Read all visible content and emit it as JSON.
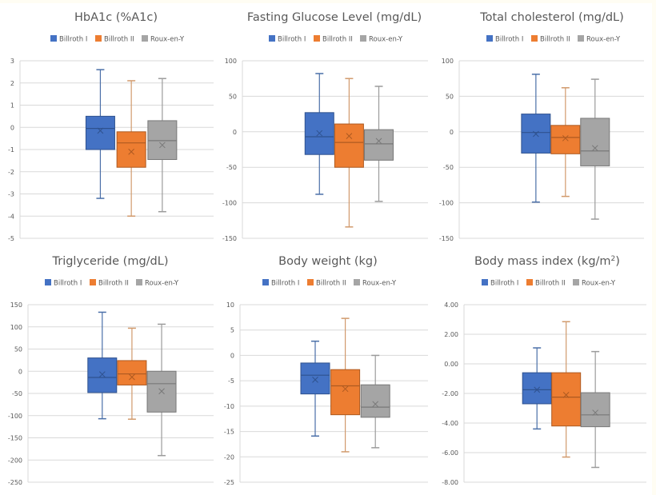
{
  "colors": {
    "billroth_i": "#4472c4",
    "billroth_ii": "#ed7d31",
    "roux_en_y": "#a5a5a5",
    "billroth_i_line": "#2f528f",
    "billroth_ii_line": "#ae5a21",
    "roux_en_y_line": "#787878"
  },
  "legend": [
    "Billroth I",
    "Billroth II",
    "Roux-en-Y"
  ],
  "chart_data": [
    {
      "type": "box",
      "title": "HbA1c (%A1c)",
      "ylim": [
        -5,
        3
      ],
      "yticks": [
        3,
        2,
        1,
        0,
        -1,
        -2,
        -3,
        -4,
        -5
      ],
      "ytick_labels": [
        "3",
        "2",
        "1",
        "0",
        "-1",
        "-2",
        "-3",
        "-4",
        "-5"
      ],
      "grid": true,
      "legend_position": "top",
      "series": [
        {
          "name": "Billroth I",
          "min": -3.2,
          "q1": -1.0,
          "median": -0.05,
          "q3": 0.5,
          "max": 2.6,
          "mean": -0.15
        },
        {
          "name": "Billroth II",
          "min": -4.0,
          "q1": -1.8,
          "median": -0.7,
          "q3": -0.2,
          "max": 2.1,
          "mean": -1.1
        },
        {
          "name": "Roux-en-Y",
          "min": -3.8,
          "q1": -1.45,
          "median": -0.6,
          "q3": 0.3,
          "max": 2.2,
          "mean": -0.8
        }
      ]
    },
    {
      "type": "box",
      "title": "Fasting Glucose Level (mg/dL)",
      "ylim": [
        -150,
        100
      ],
      "yticks": [
        100,
        50,
        0,
        -50,
        -100,
        -150
      ],
      "ytick_labels": [
        "100",
        "50",
        "0",
        "-50",
        "-100",
        "-150"
      ],
      "grid": true,
      "legend_position": "top",
      "series": [
        {
          "name": "Billroth I",
          "min": -88,
          "q1": -32,
          "median": -7,
          "q3": 27,
          "max": 82,
          "mean": -2
        },
        {
          "name": "Billroth II",
          "min": -134,
          "q1": -50,
          "median": -15,
          "q3": 11,
          "max": 75,
          "mean": -6
        },
        {
          "name": "Roux-en-Y",
          "min": -98,
          "q1": -40,
          "median": -17,
          "q3": 3,
          "max": 64,
          "mean": -13
        }
      ]
    },
    {
      "type": "box",
      "title": "Total cholesterol  (mg/dL)",
      "ylim": [
        -150,
        100
      ],
      "yticks": [
        100,
        50,
        0,
        -50,
        -100,
        -150
      ],
      "ytick_labels": [
        "100",
        "50",
        "0",
        "-50",
        "-100",
        "-150"
      ],
      "grid": true,
      "legend_position": "top",
      "series": [
        {
          "name": "Billroth I",
          "min": -99,
          "q1": -30,
          "median": -1,
          "q3": 25,
          "max": 81,
          "mean": -3
        },
        {
          "name": "Billroth II",
          "min": -91,
          "q1": -31,
          "median": -8,
          "q3": 9,
          "max": 62,
          "mean": -9
        },
        {
          "name": "Roux-en-Y",
          "min": -123,
          "q1": -48,
          "median": -27,
          "q3": 19,
          "max": 74,
          "mean": -23
        }
      ]
    },
    {
      "type": "box",
      "title": "Triglyceride (mg/dL)",
      "ylim": [
        -250,
        150
      ],
      "yticks": [
        150,
        100,
        50,
        0,
        -50,
        -100,
        -150,
        -200,
        -250
      ],
      "ytick_labels": [
        "150",
        "100",
        "50",
        "0",
        "-50",
        "-100",
        "-150",
        "-200",
        "-250"
      ],
      "grid": true,
      "legend_position": "top",
      "series": [
        {
          "name": "Billroth I",
          "min": -107,
          "q1": -48,
          "median": -14,
          "q3": 30,
          "max": 133,
          "mean": -7
        },
        {
          "name": "Billroth II",
          "min": -108,
          "q1": -31,
          "median": -6,
          "q3": 24,
          "max": 97,
          "mean": -13
        },
        {
          "name": "Roux-en-Y",
          "min": -190,
          "q1": -92,
          "median": -28,
          "q3": 0,
          "max": 106,
          "mean": -45
        }
      ]
    },
    {
      "type": "box",
      "title": "Body weight (kg)",
      "ylim": [
        -25,
        10
      ],
      "yticks": [
        10,
        5,
        0,
        -5,
        -10,
        -15,
        -20,
        -25
      ],
      "ytick_labels": [
        "10",
        "5",
        "0",
        "-5",
        "-10",
        "-15",
        "-20",
        "-25"
      ],
      "grid": true,
      "legend_position": "top",
      "series": [
        {
          "name": "Billroth I",
          "min": -15.9,
          "q1": -7.6,
          "median": -3.9,
          "q3": -1.5,
          "max": 2.8,
          "mean": -4.8
        },
        {
          "name": "Billroth II",
          "min": -19.0,
          "q1": -11.7,
          "median": -6.0,
          "q3": -2.8,
          "max": 7.3,
          "mean": -6.6
        },
        {
          "name": "Roux-en-Y",
          "min": -18.2,
          "q1": -12.2,
          "median": -10.2,
          "q3": -5.8,
          "max": 0.0,
          "mean": -9.6
        }
      ]
    },
    {
      "type": "box",
      "title": "Body mass index (kg/m",
      "title_sup": "2",
      "title_end": ")",
      "ylim": [
        -8,
        4
      ],
      "yticks": [
        4,
        2,
        0,
        -2,
        -4,
        -6,
        -8
      ],
      "ytick_labels": [
        "4.00",
        "2.00",
        "0.00",
        "-2.00",
        "-4.00",
        "-6.00",
        "-8.00"
      ],
      "grid": true,
      "legend_position": "top",
      "series": [
        {
          "name": "Billroth I",
          "min": -4.4,
          "q1": -2.7,
          "median": -1.75,
          "q3": -0.6,
          "max": 1.08,
          "mean": -1.75
        },
        {
          "name": "Billroth II",
          "min": -6.3,
          "q1": -4.2,
          "median": -2.25,
          "q3": -0.6,
          "max": 2.85,
          "mean": -2.1
        },
        {
          "name": "Roux-en-Y",
          "min": -7.0,
          "q1": -4.25,
          "median": -3.45,
          "q3": -1.95,
          "max": 0.83,
          "mean": -3.3
        }
      ]
    }
  ]
}
